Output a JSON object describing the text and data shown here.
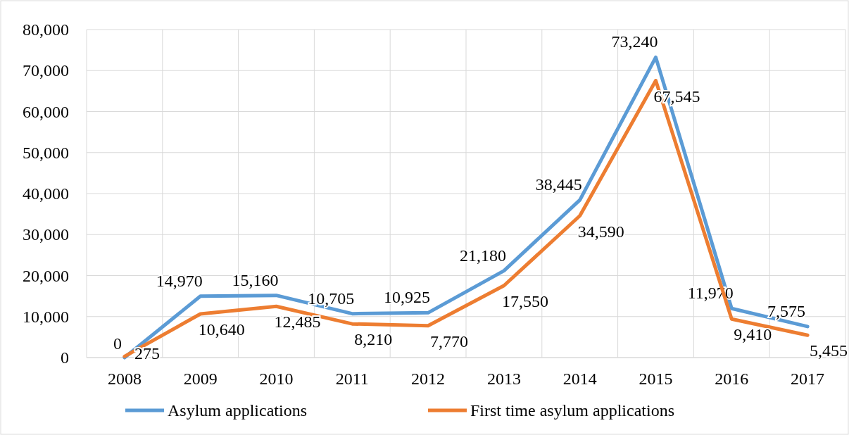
{
  "chart_data": {
    "type": "line",
    "categories": [
      "2008",
      "2009",
      "2010",
      "2011",
      "2012",
      "2013",
      "2014",
      "2015",
      "2016",
      "2017"
    ],
    "series": [
      {
        "name": "Asylum applications",
        "color": "#5b9bd5",
        "values": [
          0,
          14970,
          15160,
          10705,
          10925,
          21180,
          38445,
          73240,
          11970,
          7575
        ],
        "value_labels": [
          "0",
          "14,970",
          "15,160",
          "10,705",
          "10,925",
          "21,180",
          "38,445",
          "73,240",
          "11,970",
          "7,575"
        ]
      },
      {
        "name": "First time asylum applications",
        "color": "#ed7d31",
        "values": [
          275,
          10640,
          12485,
          8210,
          7770,
          17550,
          34590,
          67545,
          9410,
          5455
        ],
        "value_labels": [
          "275",
          "10,640",
          "12,485",
          "8,210",
          "7,770",
          "17,550",
          "34,590",
          "67,545",
          "9,410",
          "5,455"
        ]
      }
    ],
    "ylim": [
      0,
      80000
    ],
    "yticks": [
      {
        "value": 0,
        "label": "0"
      },
      {
        "value": 10000,
        "label": "10,000"
      },
      {
        "value": 20000,
        "label": "20,000"
      },
      {
        "value": 30000,
        "label": "30,000"
      },
      {
        "value": 40000,
        "label": "40,000"
      },
      {
        "value": 50000,
        "label": "50,000"
      },
      {
        "value": 60000,
        "label": "60,000"
      },
      {
        "value": 70000,
        "label": "70,000"
      },
      {
        "value": 80000,
        "label": "80,000"
      }
    ],
    "grid": true,
    "legend": "bottom",
    "marker": "none",
    "line_style": "solid"
  }
}
